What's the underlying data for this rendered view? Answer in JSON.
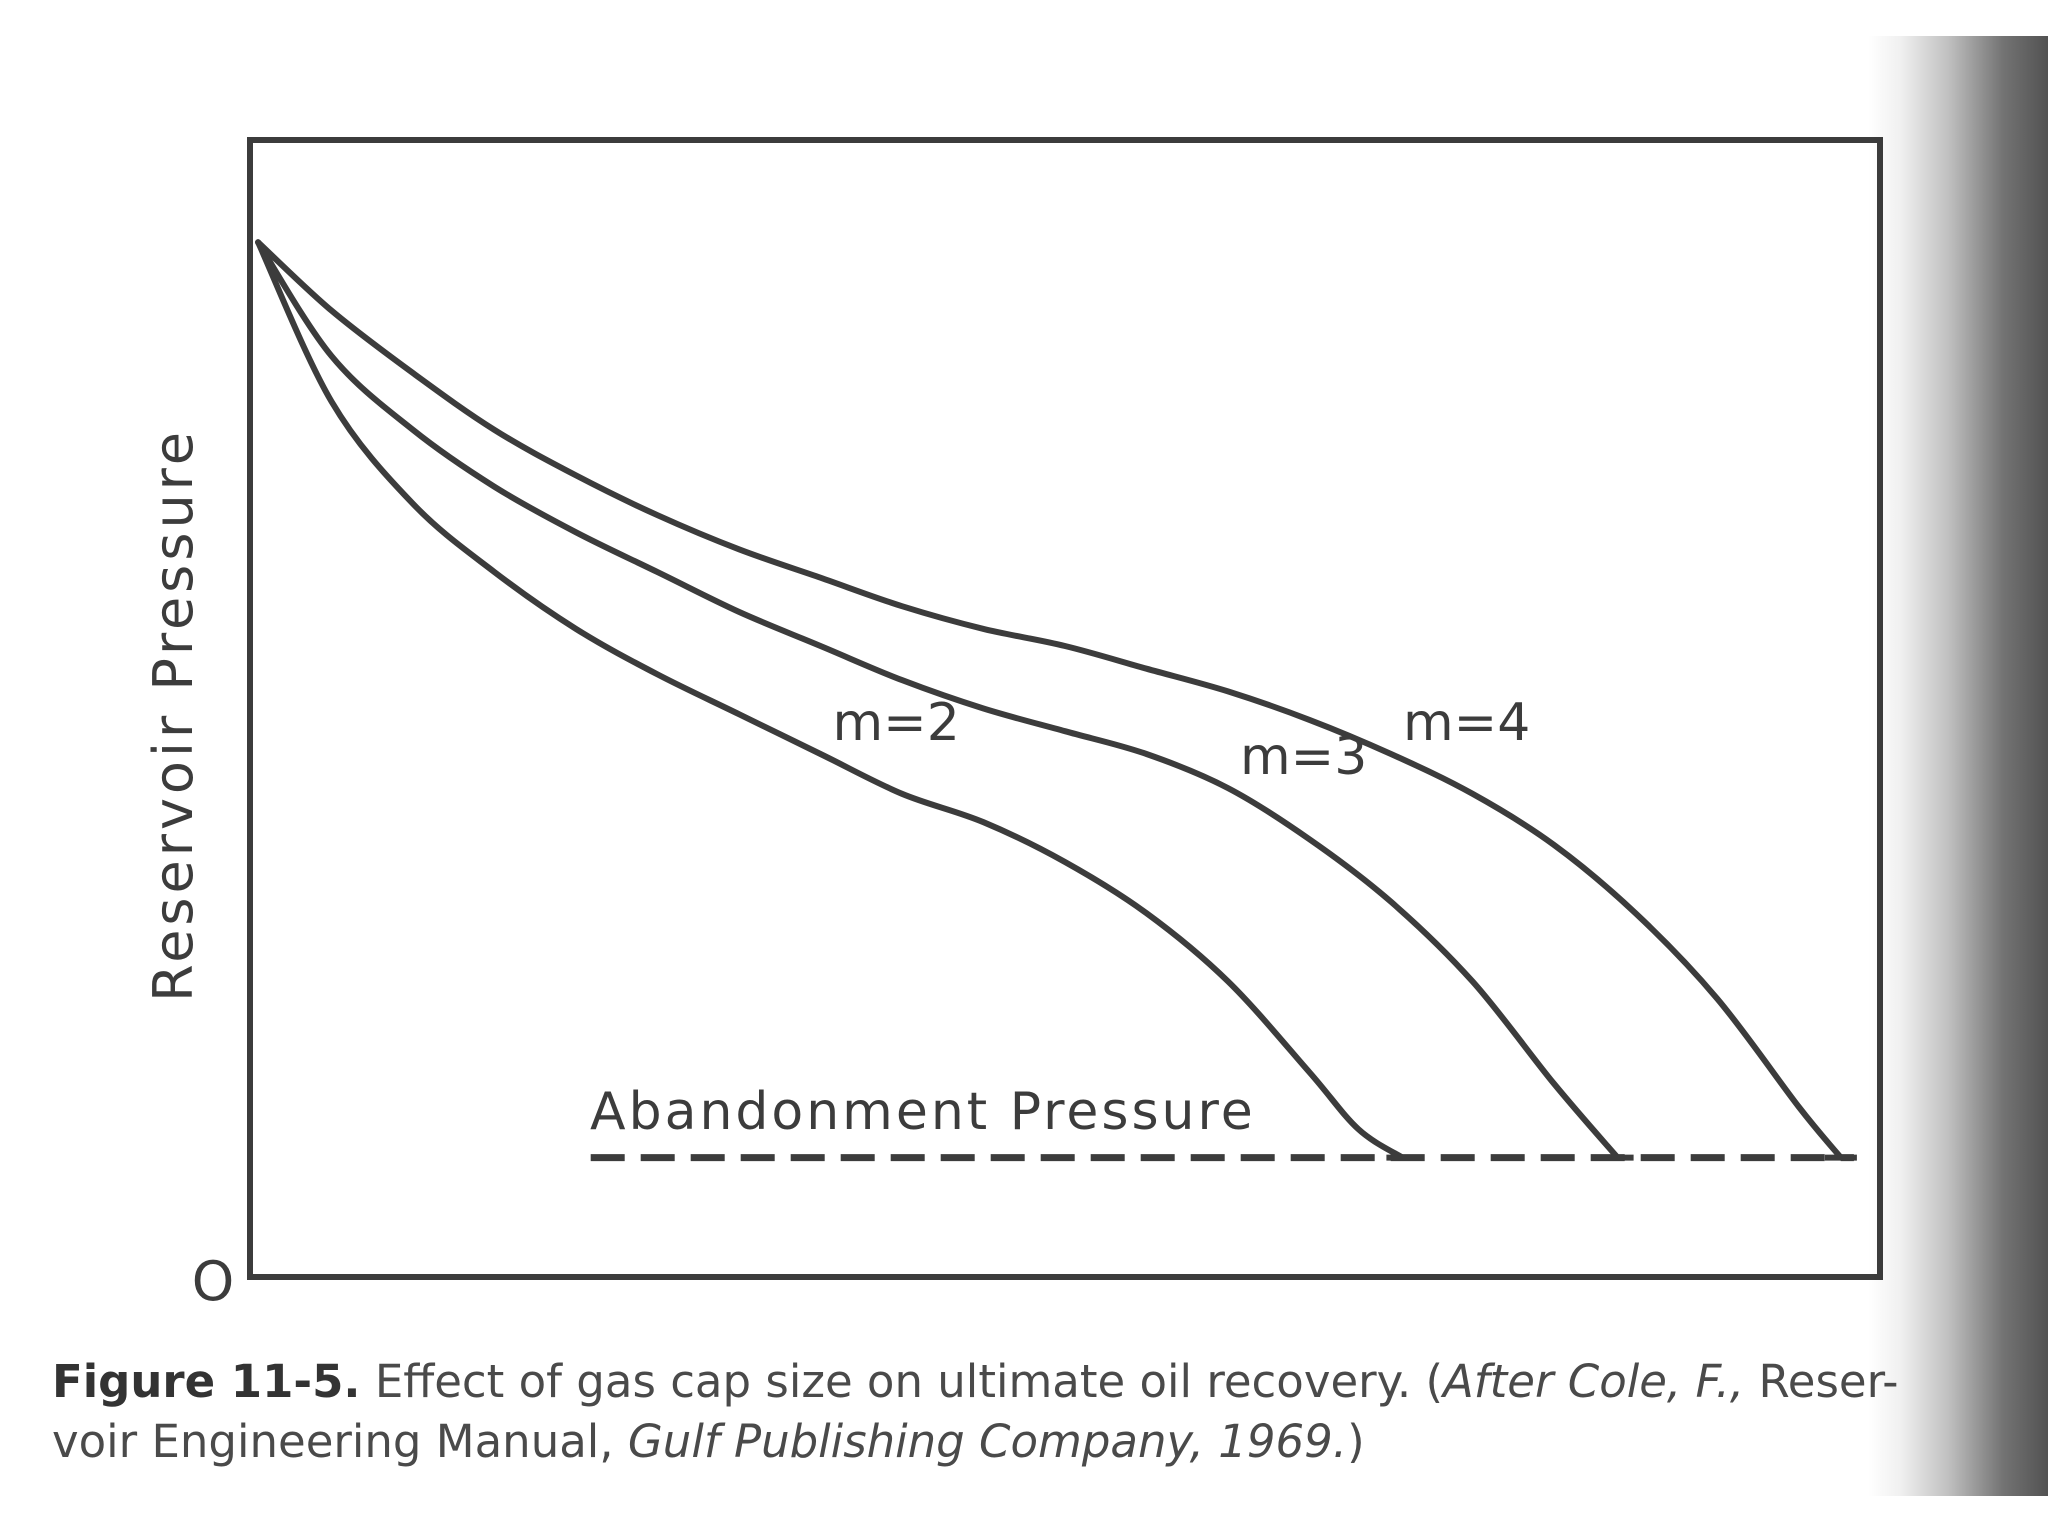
{
  "chart_data": {
    "type": "line",
    "title": "",
    "xlabel": "",
    "ylabel": "Reservoir Pressure",
    "origin_label": "O",
    "xlim": [
      0,
      100
    ],
    "ylim": [
      0,
      100
    ],
    "grid": false,
    "legend": "none (series labeled inline)",
    "reference_line": {
      "label": "Abandonment Pressure",
      "y": 10.5,
      "x_start": 20.9,
      "x_end": 98.4,
      "style": "dashed"
    },
    "series": [
      {
        "name": "m=2",
        "x": [
          0.5,
          5,
          10,
          15,
          20,
          25,
          30,
          35,
          40,
          45,
          50,
          55,
          60,
          65,
          68,
          70.7
        ],
        "y": [
          91,
          77,
          68,
          62,
          57,
          53,
          49.5,
          46,
          42.5,
          40,
          36.5,
          32,
          26,
          18,
          13,
          10.5
        ]
      },
      {
        "name": "m=3",
        "x": [
          0.5,
          5,
          10,
          15,
          20,
          25,
          30,
          35,
          40,
          45,
          50,
          55,
          60,
          65,
          70,
          75,
          80,
          83.9
        ],
        "y": [
          91,
          81,
          74.5,
          69.5,
          65.5,
          62,
          58.5,
          55.5,
          52.5,
          50,
          48,
          46,
          43,
          38.5,
          33,
          26,
          17,
          10.5
        ]
      },
      {
        "name": "m=4",
        "x": [
          0.5,
          5,
          10,
          15,
          20,
          25,
          30,
          35,
          40,
          45,
          50,
          55,
          60,
          65,
          70,
          75,
          80,
          85,
          90,
          95,
          97.6
        ],
        "y": [
          91,
          85,
          79.5,
          74.5,
          70.5,
          67,
          64,
          61.5,
          59,
          57,
          55.5,
          53.5,
          51.5,
          49,
          46,
          42.5,
          38,
          32,
          24.5,
          15,
          10.5
        ]
      }
    ]
  },
  "caption": {
    "label": "Figure 11-5.",
    "text": "Effect of gas cap size on ultimate oil recovery. (",
    "cite1": "After Cole, F.,",
    "text2": "Reser-",
    "text3": "voir Engineering Manual,",
    "cite2": "Gulf Publishing Company, 1969.",
    "text4": ")"
  },
  "colors": {
    "ink": "#3c3c3c",
    "caption": "#4a4a4a"
  }
}
